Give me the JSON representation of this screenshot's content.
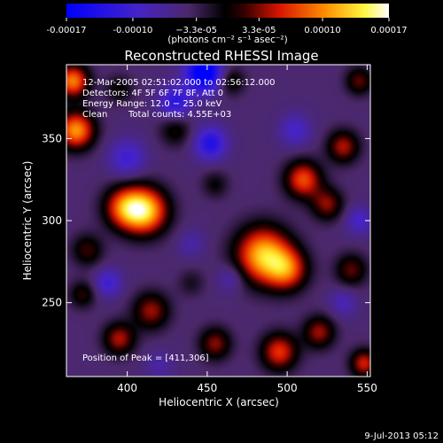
{
  "chart_data": {
    "type": "heatmap",
    "title": "Reconstructed RHESSI Image",
    "xlabel": "Heliocentric X (arcsec)",
    "ylabel": "Heliocentric Y (arcsec)",
    "xlim": [
      362,
      552
    ],
    "ylim": [
      205,
      395
    ],
    "x_ticks": [
      400,
      450,
      500,
      550
    ],
    "x_tick_labels": [
      "400",
      "450",
      "500",
      "550"
    ],
    "y_ticks": [
      250,
      300,
      350
    ],
    "y_tick_labels": [
      "250",
      "300",
      "350"
    ],
    "colorbar": {
      "range": [
        -0.00017,
        0.00017
      ],
      "ticks": [
        -0.00017,
        -0.0001,
        -3.3e-05,
        3.3e-05,
        0.0001,
        0.00017
      ],
      "tick_labels": [
        "-0.00017",
        "-0.00010",
        "−3.3e-05",
        "3.3e-05",
        "0.00010",
        "0.00017"
      ],
      "unit_label": "(photons cm⁻² s⁻¹ asec⁻²)"
    },
    "annotations": [
      "12-Mar-2005 02:51:02.000 to 02:56:12.000",
      "Detectors: 4F 5F 6F 7F 8F, Att 0",
      "Energy Range: 12.0 − 25.0 keV",
      "Clean",
      "Total counts: 4.55E+03"
    ],
    "peak_label": "Position of Peak = [411,306]",
    "peak": [
      411,
      306
    ],
    "blobs": [
      {
        "x": 411,
        "y": 306,
        "v": 0.00017,
        "s": 10
      },
      {
        "x": 398,
        "y": 308,
        "v": 0.00011,
        "s": 9
      },
      {
        "x": 485,
        "y": 279,
        "v": 0.000165,
        "s": 12
      },
      {
        "x": 500,
        "y": 270,
        "v": 0.00011,
        "s": 9
      },
      {
        "x": 368,
        "y": 355,
        "v": 0.00015,
        "s": 8
      },
      {
        "x": 366,
        "y": 385,
        "v": 0.00014,
        "s": 7
      },
      {
        "x": 375,
        "y": 282,
        "v": 6e-05,
        "s": 7
      },
      {
        "x": 372,
        "y": 255,
        "v": 5.5e-05,
        "s": 6
      },
      {
        "x": 510,
        "y": 325,
        "v": 0.00012,
        "s": 8
      },
      {
        "x": 525,
        "y": 310,
        "v": 8e-05,
        "s": 7
      },
      {
        "x": 535,
        "y": 345,
        "v": 9e-05,
        "s": 7
      },
      {
        "x": 430,
        "y": 355,
        "v": 5e-05,
        "s": 7
      },
      {
        "x": 465,
        "y": 385,
        "v": 5.5e-05,
        "s": 6
      },
      {
        "x": 415,
        "y": 245,
        "v": 8.5e-05,
        "s": 8
      },
      {
        "x": 395,
        "y": 228,
        "v": 9e-05,
        "s": 7
      },
      {
        "x": 440,
        "y": 262,
        "v": 3e-05,
        "s": 6
      },
      {
        "x": 455,
        "y": 225,
        "v": 8e-05,
        "s": 7
      },
      {
        "x": 495,
        "y": 220,
        "v": 0.00011,
        "s": 8
      },
      {
        "x": 520,
        "y": 232,
        "v": 8.5e-05,
        "s": 7
      },
      {
        "x": 540,
        "y": 270,
        "v": 7e-05,
        "s": 7
      },
      {
        "x": 548,
        "y": 213,
        "v": 0.0001,
        "s": 6
      },
      {
        "x": 545,
        "y": 385,
        "v": 7e-05,
        "s": 6
      },
      {
        "x": 455,
        "y": 322,
        "v": 4e-05,
        "s": 6
      },
      {
        "x": 395,
        "y": 380,
        "v": 4.5e-05,
        "s": 6
      },
      {
        "x": 448,
        "y": 390,
        "v": -0.00015,
        "s": 8
      },
      {
        "x": 430,
        "y": 372,
        "v": -8e-05,
        "s": 7
      },
      {
        "x": 452,
        "y": 347,
        "v": -9e-05,
        "s": 7
      },
      {
        "x": 400,
        "y": 338,
        "v": -6e-05,
        "s": 8
      },
      {
        "x": 388,
        "y": 262,
        "v": -6e-05,
        "s": 6
      },
      {
        "x": 465,
        "y": 265,
        "v": -4e-05,
        "s": 6
      },
      {
        "x": 545,
        "y": 300,
        "v": -5e-05,
        "s": 6
      },
      {
        "x": 505,
        "y": 355,
        "v": -5e-05,
        "s": 7
      },
      {
        "x": 440,
        "y": 286,
        "v": -3e-05,
        "s": 6
      },
      {
        "x": 535,
        "y": 250,
        "v": -4e-05,
        "s": 6
      },
      {
        "x": 420,
        "y": 212,
        "v": -3e-05,
        "s": 6
      }
    ]
  },
  "footer": {
    "timestamp": "9-Jul-2013 05:12"
  }
}
